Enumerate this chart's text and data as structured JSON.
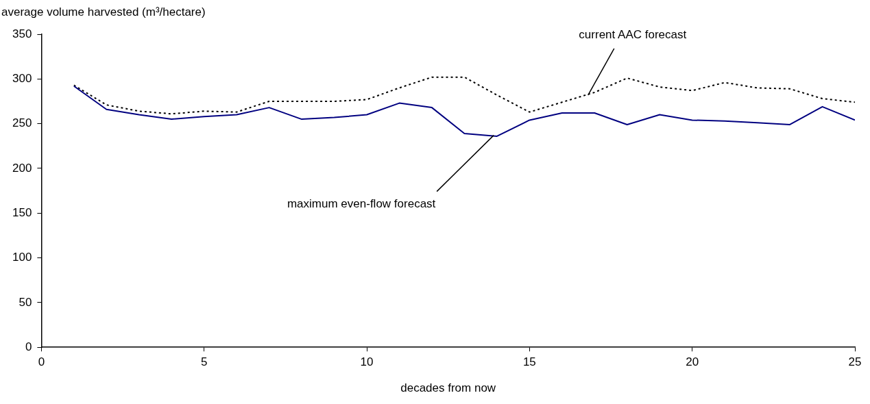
{
  "chart_data": {
    "type": "line",
    "ylabel": "average volume harvested (m³/hectare)",
    "xlabel": "decades from now",
    "x": [
      1,
      2,
      3,
      4,
      5,
      6,
      7,
      8,
      9,
      10,
      11,
      12,
      13,
      14,
      15,
      16,
      17,
      18,
      19,
      20,
      21,
      22,
      23,
      24,
      25
    ],
    "series": [
      {
        "color": "#000080",
        "line_style": "solid",
        "values": [
          292,
          266,
          260,
          255,
          258,
          260,
          268,
          255,
          257,
          260,
          273,
          268,
          239,
          236,
          254,
          262,
          262,
          249,
          260,
          254,
          253,
          251,
          249,
          269,
          254
        ]
      },
      {
        "color": "#000000",
        "line_style": "dotted",
        "values": [
          293,
          271,
          264,
          261,
          264,
          263,
          275,
          275,
          275,
          277,
          290,
          302,
          302,
          282,
          263,
          274,
          285,
          301,
          291,
          287,
          296,
          290,
          289,
          278,
          274
        ]
      }
    ],
    "xlim": [
      0,
      25
    ],
    "xticks": [
      0,
      5,
      10,
      15,
      20,
      25
    ],
    "ylim": [
      0,
      350
    ],
    "yticks": [
      0,
      50,
      100,
      150,
      200,
      250,
      300,
      350
    ],
    "grid": false,
    "legend": false,
    "marker": "none",
    "annotations": [
      {
        "text": "current AAC forecast",
        "x": 16.8,
        "y": 282
      },
      {
        "text": "maximum even-flow forecast",
        "x": 13.9,
        "y": 237
      }
    ]
  }
}
